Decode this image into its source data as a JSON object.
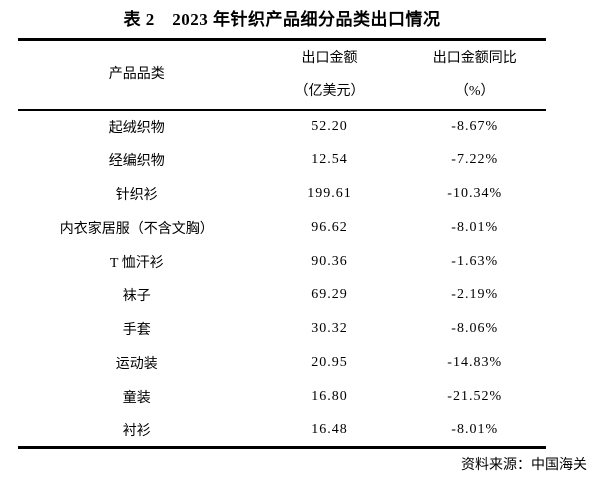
{
  "document": {
    "title": "表 2　2023 年针织产品细分品类出口情况",
    "source_note": "资料来源：中国海关",
    "colors": {
      "background": "#ffffff",
      "text": "#000000",
      "rule": "#000000"
    }
  },
  "table": {
    "headers": {
      "category": "产品品类",
      "amount_line1": "出口金额",
      "amount_line2": "（亿美元）",
      "yoy_line1": "出口金额同比",
      "yoy_line2": "（%）"
    },
    "rows": [
      {
        "category": "起绒织物",
        "amount": "52.20",
        "yoy": "-8.67%"
      },
      {
        "category": "经编织物",
        "amount": "12.54",
        "yoy": "-7.22%"
      },
      {
        "category": "针织衫",
        "amount": "199.61",
        "yoy": "-10.34%"
      },
      {
        "category": "内衣家居服（不含文胸）",
        "amount": "96.62",
        "yoy": "-8.01%"
      },
      {
        "category": "T 恤汗衫",
        "amount": "90.36",
        "yoy": "-1.63%"
      },
      {
        "category": "袜子",
        "amount": "69.29",
        "yoy": "-2.19%"
      },
      {
        "category": "手套",
        "amount": "30.32",
        "yoy": "-8.06%"
      },
      {
        "category": "运动装",
        "amount": "20.95",
        "yoy": "-14.83%"
      },
      {
        "category": "童装",
        "amount": "16.80",
        "yoy": "-21.52%"
      },
      {
        "category": "衬衫",
        "amount": "16.48",
        "yoy": "-8.01%"
      }
    ]
  }
}
